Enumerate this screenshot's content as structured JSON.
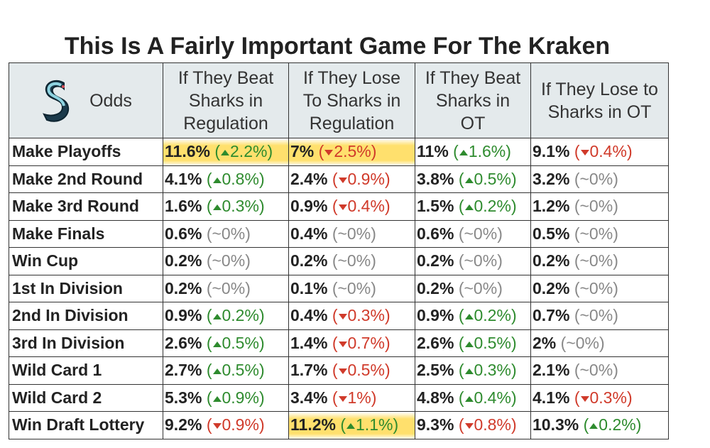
{
  "title": "This Is A Fairly Important Game For The Kraken",
  "header": {
    "corner_label": "Odds",
    "columns": [
      "If They Beat Sharks in Regulation",
      "If They Lose To Sharks in Regulation",
      "If They Beat Sharks in OT",
      "If They Lose to Sharks in OT"
    ]
  },
  "colors": {
    "up": "#2e8b2e",
    "down": "#d03a2a",
    "flat": "#888888",
    "highlight": "#ffd63c",
    "header_bg": "#e4eaec"
  },
  "rows": [
    {
      "label": "Make Playoffs",
      "cells": [
        {
          "v": "11.6%",
          "d": "up",
          "t": "2.2%",
          "hl": true
        },
        {
          "v": "7%",
          "d": "down",
          "t": "2.5%",
          "hl": true
        },
        {
          "v": "11%",
          "d": "up",
          "t": "1.6%"
        },
        {
          "v": "9.1%",
          "d": "down",
          "t": "0.4%"
        }
      ]
    },
    {
      "label": "Make 2nd Round",
      "cells": [
        {
          "v": "4.1%",
          "d": "up",
          "t": "0.8%"
        },
        {
          "v": "2.4%",
          "d": "down",
          "t": "0.9%"
        },
        {
          "v": "3.8%",
          "d": "up",
          "t": "0.5%"
        },
        {
          "v": "3.2%",
          "d": "flat",
          "t": "~0%"
        }
      ]
    },
    {
      "label": "Make 3rd Round",
      "cells": [
        {
          "v": "1.6%",
          "d": "up",
          "t": "0.3%"
        },
        {
          "v": "0.9%",
          "d": "down",
          "t": "0.4%"
        },
        {
          "v": "1.5%",
          "d": "up",
          "t": "0.2%"
        },
        {
          "v": "1.2%",
          "d": "flat",
          "t": "~0%"
        }
      ]
    },
    {
      "label": "Make Finals",
      "cells": [
        {
          "v": "0.6%",
          "d": "flat",
          "t": "~0%"
        },
        {
          "v": "0.4%",
          "d": "flat",
          "t": "~0%"
        },
        {
          "v": "0.6%",
          "d": "flat",
          "t": "~0%"
        },
        {
          "v": "0.5%",
          "d": "flat",
          "t": "~0%"
        }
      ]
    },
    {
      "label": "Win Cup",
      "cells": [
        {
          "v": "0.2%",
          "d": "flat",
          "t": "~0%"
        },
        {
          "v": "0.2%",
          "d": "flat",
          "t": "~0%"
        },
        {
          "v": "0.2%",
          "d": "flat",
          "t": "~0%"
        },
        {
          "v": "0.2%",
          "d": "flat",
          "t": "~0%"
        }
      ]
    },
    {
      "label": "1st In Division",
      "cells": [
        {
          "v": "0.2%",
          "d": "flat",
          "t": "~0%"
        },
        {
          "v": "0.1%",
          "d": "flat",
          "t": "~0%"
        },
        {
          "v": "0.2%",
          "d": "flat",
          "t": "~0%"
        },
        {
          "v": "0.2%",
          "d": "flat",
          "t": "~0%"
        }
      ]
    },
    {
      "label": "2nd In Division",
      "cells": [
        {
          "v": "0.9%",
          "d": "up",
          "t": "0.2%"
        },
        {
          "v": "0.4%",
          "d": "down",
          "t": "0.3%"
        },
        {
          "v": "0.9%",
          "d": "up",
          "t": "0.2%"
        },
        {
          "v": "0.7%",
          "d": "flat",
          "t": "~0%"
        }
      ]
    },
    {
      "label": "3rd In Division",
      "cells": [
        {
          "v": "2.6%",
          "d": "up",
          "t": "0.5%"
        },
        {
          "v": "1.4%",
          "d": "down",
          "t": "0.7%"
        },
        {
          "v": "2.6%",
          "d": "up",
          "t": "0.5%"
        },
        {
          "v": "2%",
          "d": "flat",
          "t": "~0%"
        }
      ]
    },
    {
      "label": "Wild Card 1",
      "cells": [
        {
          "v": "2.7%",
          "d": "up",
          "t": "0.5%"
        },
        {
          "v": "1.7%",
          "d": "down",
          "t": "0.5%"
        },
        {
          "v": "2.5%",
          "d": "up",
          "t": "0.3%"
        },
        {
          "v": "2.1%",
          "d": "flat",
          "t": "~0%"
        }
      ]
    },
    {
      "label": "Wild Card 2",
      "cells": [
        {
          "v": "5.3%",
          "d": "up",
          "t": "0.9%"
        },
        {
          "v": "3.4%",
          "d": "down",
          "t": "1%"
        },
        {
          "v": "4.8%",
          "d": "up",
          "t": "0.4%"
        },
        {
          "v": "4.1%",
          "d": "down",
          "t": "0.3%"
        }
      ]
    },
    {
      "label": "Win Draft Lottery",
      "cells": [
        {
          "v": "9.2%",
          "d": "down",
          "t": "0.9%"
        },
        {
          "v": "11.2%",
          "d": "up",
          "t": "1.1%",
          "hl": true
        },
        {
          "v": "9.3%",
          "d": "down",
          "t": "0.8%"
        },
        {
          "v": "10.3%",
          "d": "up",
          "t": "0.2%"
        }
      ]
    }
  ]
}
